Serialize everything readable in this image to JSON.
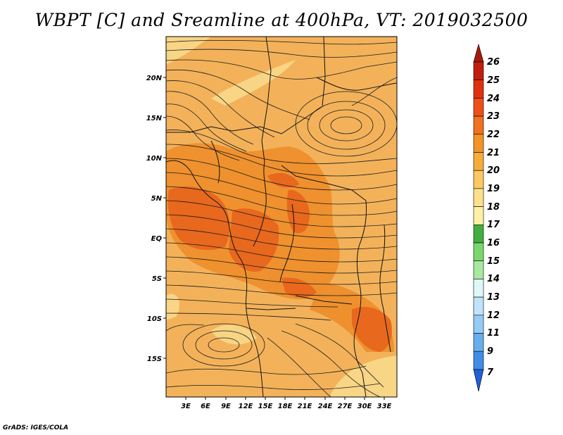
{
  "title": "WBPT [C] and Sreamline at 400hPa, VT: 2019032500",
  "credit": "GrADS: IGES/COLA",
  "map": {
    "lat_ticks": [
      "20N",
      "15N",
      "10N",
      "5N",
      "EQ",
      "5S",
      "10S",
      "15S"
    ],
    "lon_ticks": [
      "3E",
      "6E",
      "9E",
      "12E",
      "15E",
      "18E",
      "21E",
      "24E",
      "27E",
      "30E",
      "33E"
    ],
    "colors": {
      "base": "#f3b25a",
      "warm": "#ee8f2c",
      "hot": "#e8681e",
      "pale": "#f8d98a",
      "lines": "#1a1a1a"
    }
  },
  "colorbar": {
    "labels": [
      "26",
      "25",
      "24",
      "23",
      "22",
      "21",
      "20",
      "19",
      "18",
      "17",
      "16",
      "15",
      "14",
      "13",
      "12",
      "11",
      "9",
      "7"
    ],
    "colors": [
      "#a51a08",
      "#c21e0d",
      "#e0320f",
      "#ee4f16",
      "#f0711e",
      "#f49326",
      "#f6ad38",
      "#fbc862",
      "#fff0a6",
      "#3fb03f",
      "#7ad76d",
      "#a8e8a0",
      "#dff7f7",
      "#bfe3fa",
      "#95cbf4",
      "#67aeee",
      "#3f8de6",
      "#2060d8",
      "#1848c0"
    ]
  }
}
